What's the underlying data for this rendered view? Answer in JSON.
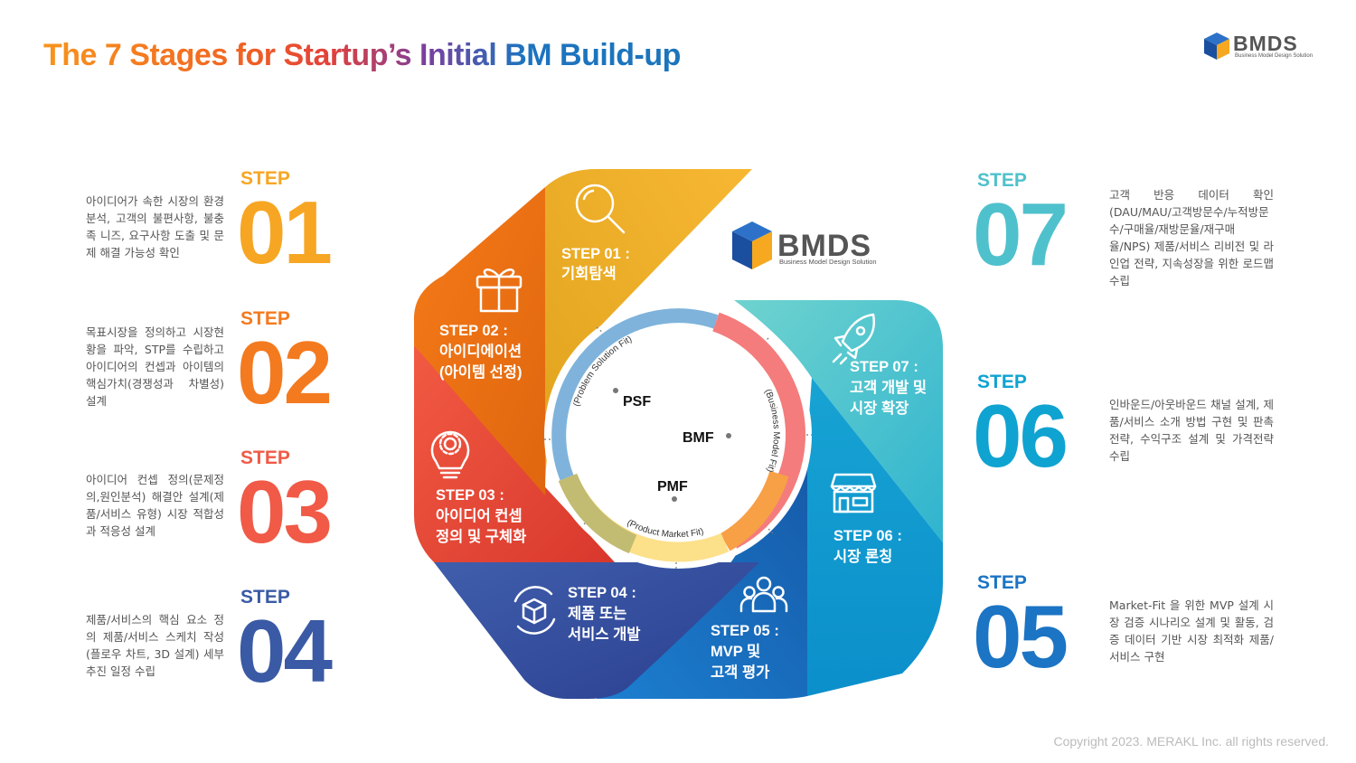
{
  "title": "The 7 Stages for Startup’s Initial BM Build-up",
  "logo": {
    "name": "BMDS",
    "sub": "Business Model Design Solution"
  },
  "copyright": "Copyright 2023. MERAKL Inc. all rights reserved.",
  "colors": {
    "s1": "#f5a31a",
    "s2": "#f37a1f",
    "s3": "#ee4f3e",
    "s4": "#3b5ba5",
    "s5": "#1c6fc0",
    "s6": "#1cb1d6",
    "s7": "#55c3cd"
  },
  "left_steps": [
    {
      "label": "STEP",
      "num": "01",
      "color": "#f7a623",
      "desc": "아이디어가 속한 시장의 환경분석, 고객의 불편사항, 불충족 니즈, 요구사항 도출 및 문제 해결 가능성 확인"
    },
    {
      "label": "STEP",
      "num": "02",
      "color": "#f47a1f",
      "desc": "목표시장을 정의하고 시장현황을 파악, STP를 수립하고 아이디어의 컨셉과 아이템의 핵심가치(경쟁성과 차별성) 설계"
    },
    {
      "label": "STEP",
      "num": "03",
      "color": "#f05a47",
      "desc": "아이디어 컨셉 정의(문제정의,원인분석) 해결안 설계(제품/서비스 유형) 시장 적합성과 적응성 설계"
    },
    {
      "label": "STEP",
      "num": "04",
      "color": "#3a5aa5",
      "desc": "제품/서비스의 핵심 요소 정의 제품/서비스 스케치 작성(플로우 차트, 3D 설계) 세부 추진 일정 수립"
    }
  ],
  "right_steps": [
    {
      "label": "STEP",
      "num": "07",
      "color": "#4fc1cc",
      "desc": "고객 반응 데이터 확인(DAU/MAU/고객방문수/누적방문수/구매율/재방문율/재구매율/NPS) 제품/서비스 리비전 및 라인업 전략, 지속성장을 위한 로드맵 수립"
    },
    {
      "label": "STEP",
      "num": "06",
      "color": "#0fa3d1",
      "desc": "인바운드/아웃바운드 채널 설계, 제품/서비스 소개 방법 구현 및 판촉 전략, 수익구조 설계 및 가격전략 수립"
    },
    {
      "label": "STEP",
      "num": "05",
      "color": "#1b74c4",
      "desc": "Market-Fit 을 위한 MVP 설계 시장 검증 시나리오 설계 및 활동, 검증 데이터 기반 시장 최적화 제품/서비스 구현"
    }
  ],
  "segments": [
    {
      "l1": "STEP 01 :",
      "l2": "기회탐색",
      "l3": ""
    },
    {
      "l1": "STEP 02 :",
      "l2": "아이디에이션",
      "l3": "(아이템 선정)"
    },
    {
      "l1": "STEP 03 :",
      "l2": "아이디어 컨셉",
      "l3": "정의 및 구체화"
    },
    {
      "l1": "STEP 04 :",
      "l2": "제품 또는",
      "l3": "서비스 개발"
    },
    {
      "l1": "STEP 05 :",
      "l2": "MVP 및",
      "l3": "고객 평가"
    },
    {
      "l1": "STEP 06 :",
      "l2": "시장 론칭",
      "l3": ""
    },
    {
      "l1": "STEP 07 :",
      "l2": "고객 개발 및",
      "l3": "시장 확장"
    }
  ],
  "fits": [
    {
      "abbr": "PSF",
      "full": "(Problem Solution Fit)"
    },
    {
      "abbr": "BMF",
      "full": "(Business Model Fit)"
    },
    {
      "abbr": "PMF",
      "full": "(Product Market Fit)"
    }
  ],
  "icons": [
    "search-icon",
    "gift-icon",
    "lightbulb-gear-icon",
    "cube-cycle-icon",
    "people-icon",
    "store-icon",
    "rocket-icon"
  ]
}
